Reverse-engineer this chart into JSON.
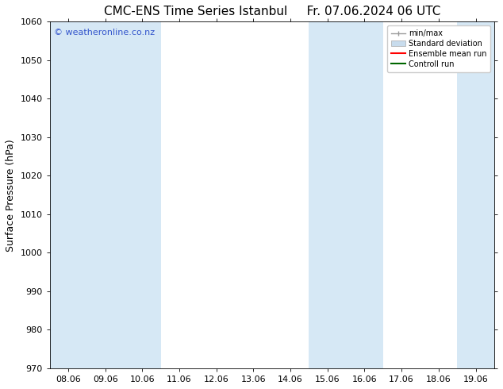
{
  "title": "CMC-ENS Time Series Istanbul     Fr. 07.06.2024 06 UTC",
  "ylabel": "Surface Pressure (hPa)",
  "ylim": [
    970,
    1060
  ],
  "yticks": [
    970,
    980,
    990,
    1000,
    1010,
    1020,
    1030,
    1040,
    1050,
    1060
  ],
  "xtick_labels": [
    "08.06",
    "09.06",
    "10.06",
    "11.06",
    "12.06",
    "13.06",
    "14.06",
    "15.06",
    "16.06",
    "17.06",
    "18.06",
    "19.06"
  ],
  "n_ticks": 12,
  "shaded_columns": [
    0,
    1,
    2,
    7,
    8,
    11
  ],
  "shade_color": "#d6e8f5",
  "background_color": "#ffffff",
  "watermark_text": "© weatheronline.co.nz",
  "watermark_color": "#3355cc",
  "legend_entries": [
    "min/max",
    "Standard deviation",
    "Ensemble mean run",
    "Controll run"
  ],
  "legend_line_color_minmax": "#999999",
  "legend_fill_color_std": "#c8dced",
  "legend_color_ensemble": "#ff0000",
  "legend_color_control": "#006600",
  "title_fontsize": 11,
  "axis_label_fontsize": 9,
  "tick_fontsize": 8,
  "watermark_fontsize": 8
}
